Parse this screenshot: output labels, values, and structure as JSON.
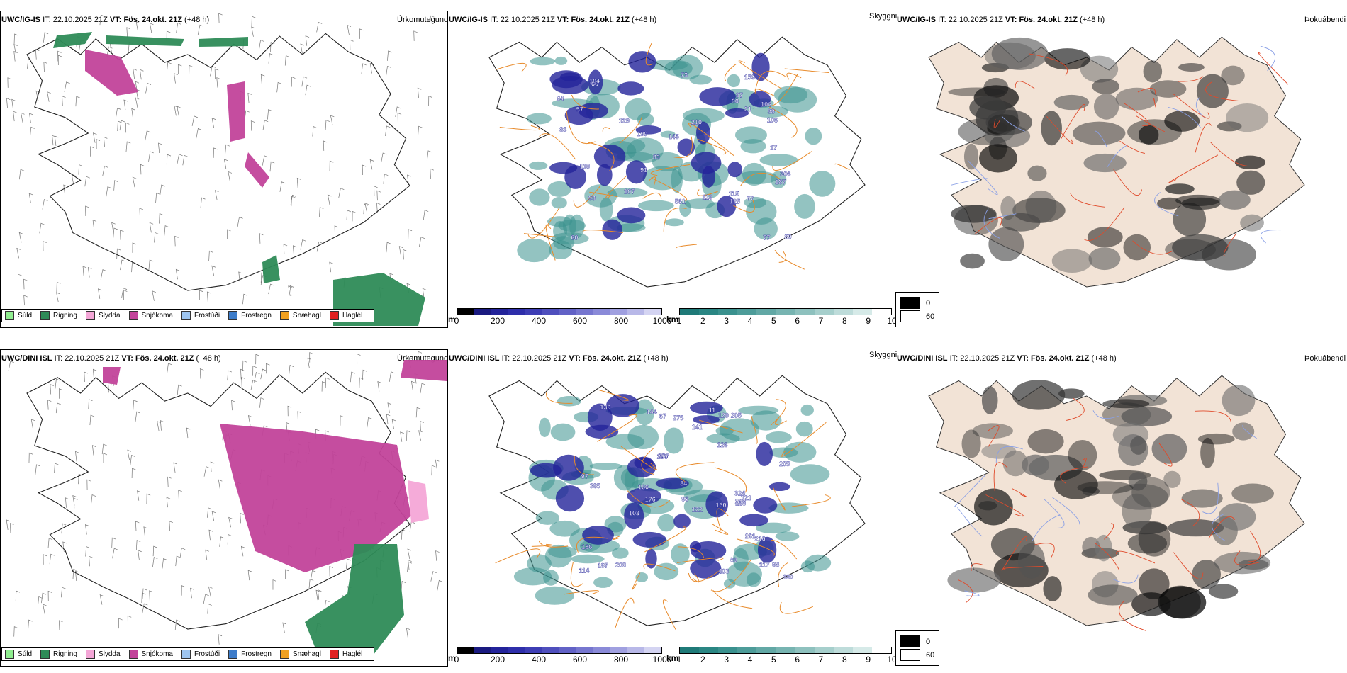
{
  "rows": [
    {
      "model": "UWC/IG-IS",
      "it_label": "IT:",
      "it_value": "22.10.2025 21Z",
      "vt_label": "VT:",
      "vt_value": "Fös. 24.okt. 21Z",
      "lead": "(+48 h)"
    },
    {
      "model": "UWC/DINI ISL",
      "it_label": "IT:",
      "it_value": "22.10.2025 21Z",
      "vt_label": "VT:",
      "vt_value": "Fös. 24.okt. 21Z",
      "lead": "(+48 h)"
    }
  ],
  "panel_titles": {
    "precip": "Úrkomutegund",
    "visibility": "Skyggni",
    "fog": "Þokuábendi"
  },
  "precip_legend": [
    {
      "label": "Súld",
      "color": "#90ee90"
    },
    {
      "label": "Rigning",
      "color": "#2e8b57"
    },
    {
      "label": "Slydda",
      "color": "#f4a6d7"
    },
    {
      "label": "Snjókoma",
      "color": "#c2439a"
    },
    {
      "label": "Frostúði",
      "color": "#9ec5f0"
    },
    {
      "label": "Frostregn",
      "color": "#3d7cc9"
    },
    {
      "label": "Snæhagl",
      "color": "#f0a020"
    },
    {
      "label": "Haglél",
      "color": "#e02020"
    }
  ],
  "ceiling_colorbar": {
    "unit": "m",
    "ticks": [
      "0",
      "200",
      "400",
      "600",
      "800",
      "1000"
    ],
    "colors": [
      "#000000",
      "#1a1a80",
      "#23239a",
      "#2e2eaa",
      "#3d3db4",
      "#4f4fbd",
      "#6262c6",
      "#7676cf",
      "#8a8ad8",
      "#a0a0e0",
      "#b8b8e8",
      "#d4d4f2"
    ]
  },
  "visibility_colorbar": {
    "unit": "km",
    "ticks": [
      "1",
      "2",
      "3",
      "4",
      "5",
      "6",
      "7",
      "8",
      "9",
      "10"
    ],
    "colors": [
      "#1f7a78",
      "#2a8683",
      "#3a918e",
      "#4d9c99",
      "#62a8a5",
      "#77b4b1",
      "#8ec1be",
      "#a6cfcc",
      "#bedcda",
      "#d6eae8",
      "#ffffff"
    ]
  },
  "fog_key": [
    {
      "label": "0",
      "color": "#000000"
    },
    {
      "label": "60",
      "color": "#ffffff"
    }
  ],
  "ceiling_labels_top": [
    "90",
    "190",
    "125",
    "21",
    "17",
    "57",
    "115",
    "104",
    "73",
    "77",
    "91",
    "83",
    "210",
    "106",
    "60",
    "66",
    "110",
    "67",
    "187",
    "107",
    "94",
    "129",
    "159",
    "306",
    "145",
    "89",
    "88",
    "88",
    "93",
    "561",
    "106",
    "119",
    "97"
  ],
  "ceiling_labels_bottom": [
    "11",
    "114",
    "84",
    "98",
    "67",
    "93",
    "89",
    "97",
    "103",
    "117",
    "256",
    "139",
    "186",
    "205",
    "275",
    "261",
    "144",
    "141",
    "385",
    "160",
    "324",
    "403",
    "330",
    "176",
    "121",
    "122",
    "163",
    "208",
    "216",
    "209",
    "205",
    "186",
    "187",
    "126",
    "120",
    "117"
  ]
}
